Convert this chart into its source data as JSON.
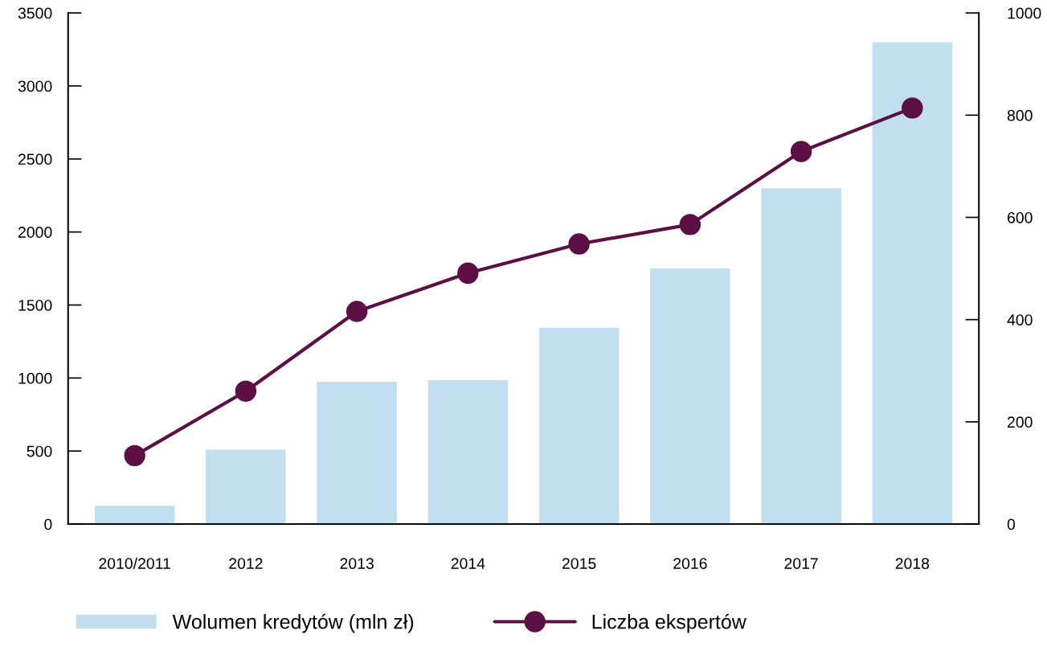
{
  "chart_data": {
    "type": "bar",
    "categories": [
      "2010/2011",
      "2012",
      "2013",
      "2014",
      "2015",
      "2016",
      "2017",
      "2018"
    ],
    "series": [
      {
        "name": "Wolumen kredytów (mln zł)",
        "color": "#c2dff0",
        "values": [
          125,
          510,
          975,
          985,
          1345,
          1750,
          2300,
          3300
        ]
      },
      {
        "name": "Liczba ekspertów",
        "type": "line",
        "axis": "y2",
        "color": "#5c0f45",
        "values": [
          134,
          260,
          416,
          491,
          548,
          586,
          729,
          814
        ]
      }
    ],
    "ylim": [
      0,
      3500
    ],
    "yticks": [
      0,
      500,
      1000,
      1500,
      2000,
      2500,
      3000,
      3500
    ],
    "y2lim": [
      0,
      1000
    ],
    "y2ticks": [
      0,
      200,
      400,
      600,
      800,
      1000
    ],
    "grid": false,
    "legend": "bottom",
    "marker": "circle",
    "line_style": "solid"
  }
}
